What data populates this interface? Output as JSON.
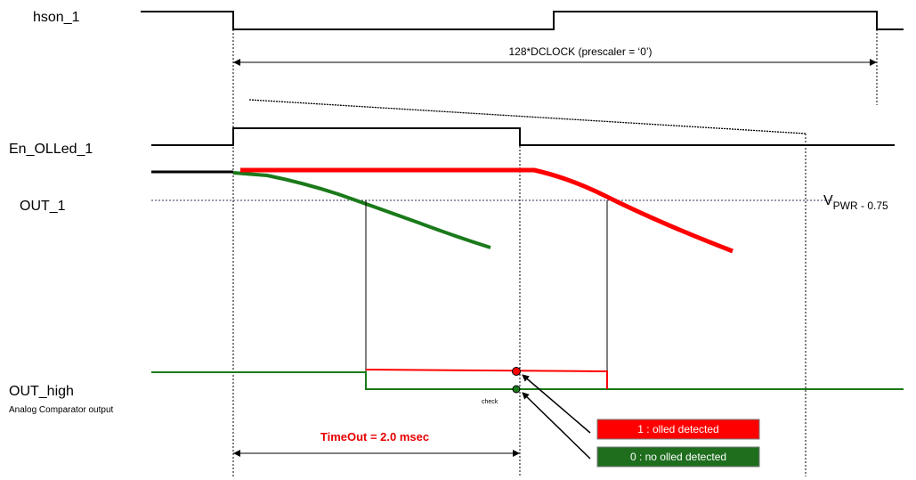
{
  "signals": {
    "hson": "hson_1",
    "en_olled": "En_OLLed_1",
    "out": "OUT_1",
    "out_high": "OUT_high",
    "out_high_sub": "Analog Comparator output"
  },
  "annotations": {
    "dclock": "128*DCLOCK (prescaler = ‘0’)",
    "vpwr_main": "V",
    "vpwr_sub": "PWR - 0.75",
    "timeout": "TimeOut = 2.0 msec",
    "check": "check"
  },
  "legend": {
    "olled": "1 : olled detected",
    "no_olled": "0 : no olled detected"
  },
  "colors": {
    "red": "#ff0000",
    "green": "#1a7a1a",
    "dark_green": "#1e6e1e",
    "threshold": "#33335a",
    "black": "#000000",
    "legend_border": "#7a7a7a",
    "timeout_text": "#e60000"
  }
}
